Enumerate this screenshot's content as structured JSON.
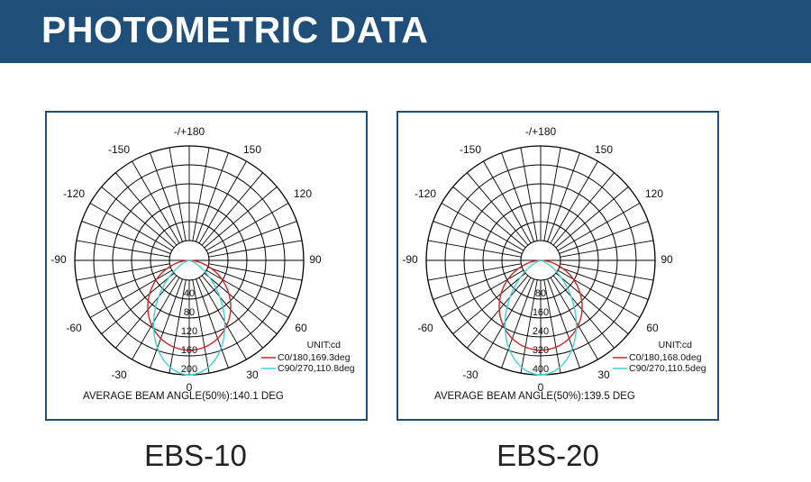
{
  "header": {
    "title": "PHOTOMETRIC DATA"
  },
  "colors": {
    "header_bg": "#1f4e79",
    "panel_border": "#1f4e79",
    "c0_curve": "#d42020",
    "c90_curve": "#3fcfd6",
    "grid": "#000000"
  },
  "chart_data": [
    {
      "type": "polar",
      "model": "EBS-10",
      "unit_label": "UNIT:cd",
      "angle_labels": [
        "-/+180",
        "150",
        "120",
        "90",
        "60",
        "30",
        "0",
        "-30",
        "-60",
        "-90",
        "-120",
        "-150"
      ],
      "radial_labels": [
        "40",
        "80",
        "120",
        "160",
        "200"
      ],
      "rmax": 200,
      "series": [
        {
          "name": "C0/180,169.3deg",
          "color": "#d42020",
          "peak": 157,
          "beam_angle": 169.3
        },
        {
          "name": "C90/270,110.8deg",
          "color": "#3fcfd6",
          "peak": 200,
          "beam_angle": 110.8
        }
      ],
      "footer": "AVERAGE BEAM ANGLE(50%):140.1 DEG"
    },
    {
      "type": "polar",
      "model": "EBS-20",
      "unit_label": "UNIT:cd",
      "angle_labels": [
        "-/+180",
        "150",
        "120",
        "90",
        "60",
        "30",
        "0",
        "-30",
        "-60",
        "-90",
        "-120",
        "-150"
      ],
      "radial_labels": [
        "80",
        "160",
        "240",
        "320",
        "400"
      ],
      "rmax": 400,
      "series": [
        {
          "name": "C0/180,168.0deg",
          "color": "#d42020",
          "peak": 314,
          "beam_angle": 168.0
        },
        {
          "name": "C90/270,110.5deg",
          "color": "#3fcfd6",
          "peak": 400,
          "beam_angle": 110.5
        }
      ],
      "footer": "AVERAGE BEAM ANGLE(50%):139.5 DEG"
    }
  ]
}
